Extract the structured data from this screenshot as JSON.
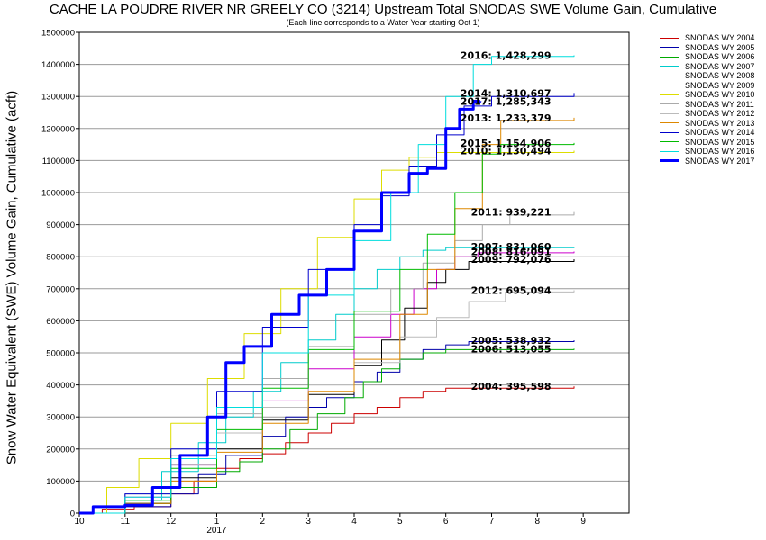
{
  "chart_data": {
    "type": "line",
    "title": "CACHE LA POUDRE RIVER NR GREELY CO (3214) Upstream Total SNODAS SWE Volume Gain, Cumulative",
    "subtitle": "(Each line corresponds to a Water Year starting Oct 1)",
    "xlabel": "",
    "ylabel": "Snow Water Equivalent (SWE) Volume Gain, Cumulative (acft)",
    "x_tick_labels": [
      "10",
      "11",
      "12",
      "1",
      "2",
      "3",
      "4",
      "5",
      "6",
      "7",
      "8",
      "9"
    ],
    "x_year_label": "2017",
    "x_unit": "month index from Oct 1 (0 = Oct 1)",
    "xlim": [
      0,
      12
    ],
    "ylim": [
      0,
      1500000
    ],
    "y_ticks": [
      0,
      100000,
      200000,
      300000,
      400000,
      500000,
      600000,
      700000,
      800000,
      900000,
      1000000,
      1100000,
      1200000,
      1300000,
      1400000,
      1500000
    ],
    "grid": "horizontal",
    "legend_position": "right",
    "series": [
      {
        "name": "SNODAS WY 2004",
        "color": "#cc0000",
        "width": 1,
        "end_label": "2004: 395,598",
        "points": [
          [
            0,
            0
          ],
          [
            0.5,
            10000
          ],
          [
            1.2,
            20000
          ],
          [
            2,
            60000
          ],
          [
            2.5,
            100000
          ],
          [
            3,
            140000
          ],
          [
            3.5,
            170000
          ],
          [
            4,
            185000
          ],
          [
            4.5,
            220000
          ],
          [
            5,
            250000
          ],
          [
            5.5,
            280000
          ],
          [
            6,
            310000
          ],
          [
            6.5,
            330000
          ],
          [
            7,
            360000
          ],
          [
            7.5,
            380000
          ],
          [
            8,
            390000
          ],
          [
            10.8,
            395598
          ]
        ]
      },
      {
        "name": "SNODAS WY 2005",
        "color": "#0000aa",
        "width": 1,
        "end_label": "2005: 538,932",
        "points": [
          [
            0,
            0
          ],
          [
            1,
            20000
          ],
          [
            2,
            60000
          ],
          [
            2.6,
            120000
          ],
          [
            3.2,
            180000
          ],
          [
            4,
            240000
          ],
          [
            4.5,
            300000
          ],
          [
            5,
            330000
          ],
          [
            5.4,
            360000
          ],
          [
            6,
            410000
          ],
          [
            6.5,
            440000
          ],
          [
            7,
            480000
          ],
          [
            7.5,
            510000
          ],
          [
            8,
            525000
          ],
          [
            8.5,
            535000
          ],
          [
            10.8,
            538932
          ]
        ]
      },
      {
        "name": "SNODAS WY 2006",
        "color": "#00aa00",
        "width": 1,
        "end_label": "2006: 513,055",
        "points": [
          [
            0,
            0
          ],
          [
            1,
            30000
          ],
          [
            2,
            80000
          ],
          [
            3,
            130000
          ],
          [
            3.5,
            160000
          ],
          [
            4,
            200000
          ],
          [
            4.6,
            260000
          ],
          [
            5.2,
            310000
          ],
          [
            5.8,
            360000
          ],
          [
            6.2,
            410000
          ],
          [
            6.6,
            450000
          ],
          [
            7,
            480000
          ],
          [
            7.5,
            500000
          ],
          [
            8,
            510000
          ],
          [
            10.8,
            513055
          ]
        ]
      },
      {
        "name": "SNODAS WY 2007",
        "color": "#00cccc",
        "width": 1,
        "end_label": "2007: 831,060",
        "points": [
          [
            0,
            0
          ],
          [
            1,
            40000
          ],
          [
            1.8,
            130000
          ],
          [
            2.6,
            220000
          ],
          [
            3.2,
            300000
          ],
          [
            3.8,
            380000
          ],
          [
            4.4,
            470000
          ],
          [
            5,
            540000
          ],
          [
            5.6,
            620000
          ],
          [
            6,
            700000
          ],
          [
            6.5,
            760000
          ],
          [
            7,
            800000
          ],
          [
            7.5,
            820000
          ],
          [
            8,
            828000
          ],
          [
            10.8,
            831060
          ]
        ]
      },
      {
        "name": "SNODAS WY 2008",
        "color": "#cc00cc",
        "width": 1,
        "end_label": "2008: 816,091",
        "points": [
          [
            0,
            0
          ],
          [
            1,
            50000
          ],
          [
            2,
            150000
          ],
          [
            3,
            250000
          ],
          [
            4,
            350000
          ],
          [
            5,
            450000
          ],
          [
            6,
            550000
          ],
          [
            6.8,
            620000
          ],
          [
            7.3,
            700000
          ],
          [
            7.8,
            760000
          ],
          [
            8.2,
            800000
          ],
          [
            8.7,
            812000
          ],
          [
            10.8,
            816091
          ]
        ]
      },
      {
        "name": "SNODAS WY 2009",
        "color": "#000000",
        "width": 1,
        "end_label": "2009: 792,076",
        "points": [
          [
            0,
            0
          ],
          [
            1,
            30000
          ],
          [
            2,
            110000
          ],
          [
            3,
            200000
          ],
          [
            4,
            290000
          ],
          [
            5,
            370000
          ],
          [
            6,
            460000
          ],
          [
            6.6,
            540000
          ],
          [
            7.1,
            640000
          ],
          [
            7.6,
            720000
          ],
          [
            8,
            760000
          ],
          [
            8.5,
            785000
          ],
          [
            10.8,
            792076
          ]
        ]
      },
      {
        "name": "SNODAS WY 2010",
        "color": "#dddd00",
        "width": 1,
        "end_label": "2010: 1,130,494",
        "points": [
          [
            0,
            0
          ],
          [
            0.6,
            80000
          ],
          [
            1.3,
            170000
          ],
          [
            2,
            280000
          ],
          [
            2.8,
            420000
          ],
          [
            3.6,
            560000
          ],
          [
            4.4,
            700000
          ],
          [
            5.2,
            860000
          ],
          [
            6,
            980000
          ],
          [
            6.6,
            1070000
          ],
          [
            7.2,
            1110000
          ],
          [
            7.8,
            1125000
          ],
          [
            10.8,
            1130494
          ]
        ]
      },
      {
        "name": "SNODAS WY 2011",
        "color": "#aaaaaa",
        "width": 1,
        "end_label": "2011: 939,221",
        "points": [
          [
            0,
            0
          ],
          [
            1,
            60000
          ],
          [
            2,
            180000
          ],
          [
            3,
            310000
          ],
          [
            4,
            420000
          ],
          [
            5,
            520000
          ],
          [
            6,
            620000
          ],
          [
            6.8,
            700000
          ],
          [
            7.5,
            780000
          ],
          [
            8.2,
            850000
          ],
          [
            8.8,
            900000
          ],
          [
            9.4,
            930000
          ],
          [
            10.8,
            939221
          ]
        ]
      },
      {
        "name": "SNODAS WY 2012",
        "color": "#bbbbbb",
        "width": 1,
        "end_label": "2012: 695,094",
        "points": [
          [
            0,
            0
          ],
          [
            1,
            50000
          ],
          [
            2,
            150000
          ],
          [
            3,
            250000
          ],
          [
            4,
            330000
          ],
          [
            5,
            400000
          ],
          [
            6,
            470000
          ],
          [
            7,
            550000
          ],
          [
            7.8,
            610000
          ],
          [
            8.5,
            660000
          ],
          [
            9.3,
            690000
          ],
          [
            10.8,
            695094
          ]
        ]
      },
      {
        "name": "SNODAS WY 2013",
        "color": "#dd8800",
        "width": 1,
        "end_label": "2013: 1,233,379",
        "points": [
          [
            0,
            0
          ],
          [
            1,
            30000
          ],
          [
            2,
            100000
          ],
          [
            3,
            190000
          ],
          [
            4,
            280000
          ],
          [
            5,
            380000
          ],
          [
            6,
            480000
          ],
          [
            7,
            620000
          ],
          [
            7.6,
            760000
          ],
          [
            8.2,
            950000
          ],
          [
            8.8,
            1150000
          ],
          [
            9.2,
            1225000
          ],
          [
            10.8,
            1233379
          ]
        ]
      },
      {
        "name": "SNODAS WY 2014",
        "color": "#0000cc",
        "width": 1,
        "end_label": "2014: 1,310,697",
        "points": [
          [
            0,
            0
          ],
          [
            1,
            60000
          ],
          [
            2,
            200000
          ],
          [
            3,
            380000
          ],
          [
            4,
            580000
          ],
          [
            5,
            760000
          ],
          [
            6,
            900000
          ],
          [
            6.6,
            990000
          ],
          [
            7.2,
            1080000
          ],
          [
            7.8,
            1180000
          ],
          [
            8.4,
            1270000
          ],
          [
            9,
            1300000
          ],
          [
            10.8,
            1310697
          ]
        ]
      },
      {
        "name": "SNODAS WY 2015",
        "color": "#00bb00",
        "width": 1,
        "end_label": "2015: 1,154,906",
        "points": [
          [
            0,
            0
          ],
          [
            1,
            40000
          ],
          [
            2,
            140000
          ],
          [
            3,
            260000
          ],
          [
            4,
            390000
          ],
          [
            5,
            510000
          ],
          [
            6,
            630000
          ],
          [
            7,
            760000
          ],
          [
            7.6,
            870000
          ],
          [
            8.2,
            1000000
          ],
          [
            8.8,
            1120000
          ],
          [
            9.2,
            1150000
          ],
          [
            10.8,
            1154906
          ]
        ]
      },
      {
        "name": "SNODAS WY 2016",
        "color": "#00dddd",
        "width": 1,
        "end_label": "2016: 1,428,299",
        "points": [
          [
            0,
            0
          ],
          [
            1,
            50000
          ],
          [
            2,
            170000
          ],
          [
            3,
            330000
          ],
          [
            4,
            500000
          ],
          [
            5,
            680000
          ],
          [
            6,
            850000
          ],
          [
            6.8,
            1000000
          ],
          [
            7.4,
            1150000
          ],
          [
            8,
            1300000
          ],
          [
            8.6,
            1400000
          ],
          [
            9,
            1425000
          ],
          [
            10.8,
            1428299
          ]
        ]
      },
      {
        "name": "SNODAS WY 2017",
        "color": "#0000ff",
        "width": 3,
        "end_label": "2017: 1,285,343",
        "points": [
          [
            0,
            0
          ],
          [
            0.3,
            20000
          ],
          [
            1,
            25000
          ],
          [
            1.6,
            80000
          ],
          [
            2.2,
            180000
          ],
          [
            2.8,
            300000
          ],
          [
            3.2,
            470000
          ],
          [
            3.6,
            520000
          ],
          [
            4.2,
            620000
          ],
          [
            4.8,
            680000
          ],
          [
            5.4,
            760000
          ],
          [
            6,
            880000
          ],
          [
            6.6,
            1000000
          ],
          [
            7.2,
            1060000
          ],
          [
            7.6,
            1075000
          ],
          [
            8,
            1200000
          ],
          [
            8.3,
            1260000
          ],
          [
            8.6,
            1285000
          ],
          [
            8.75,
            1285343
          ]
        ]
      }
    ]
  }
}
